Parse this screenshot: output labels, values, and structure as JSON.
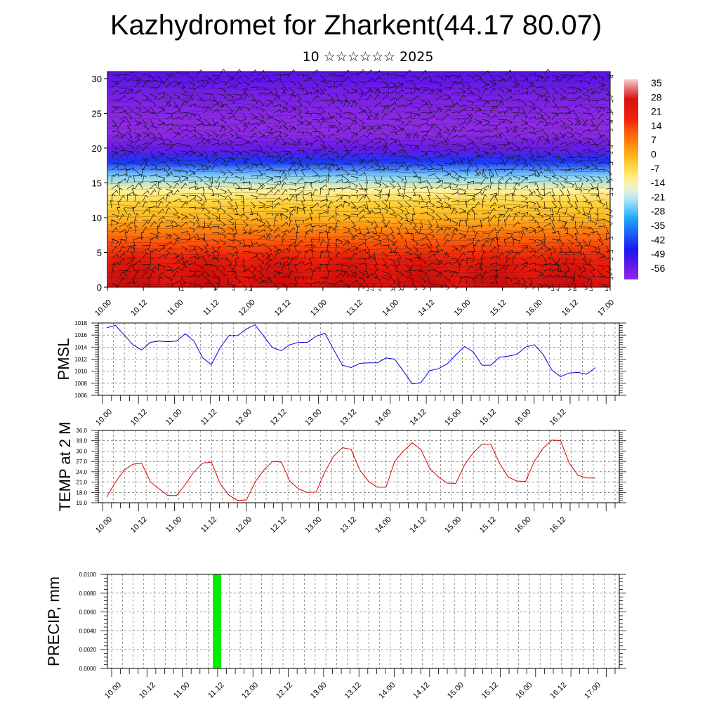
{
  "title": "Kazhydromet for Zharkent(44.17 80.07)",
  "subtitle": "10 ☆☆☆☆☆☆ 2025",
  "time_labels": [
    "10.00",
    "10.12",
    "11.00",
    "11.12",
    "12.00",
    "12.12",
    "13.00",
    "13.12",
    "14.00",
    "14.12",
    "15.00",
    "15.12",
    "16.00",
    "16.12",
    "17.00"
  ],
  "chart_data": [
    {
      "type": "heatmap",
      "name": "vertical temperature cross-section with wind barbs",
      "y_ticks": [
        "0",
        "5",
        "10",
        "15",
        "20",
        "25",
        "30"
      ],
      "ylim": [
        0,
        31
      ],
      "colorbar_labels": [
        "35",
        "28",
        "21",
        "14",
        "7",
        "0",
        "-7",
        "-14",
        "-21",
        "-28",
        "-35",
        "-42",
        "-49",
        "-56"
      ],
      "colorbar_range": [
        -60,
        38
      ],
      "levels": [
        0,
        2,
        4,
        6,
        8,
        10,
        12,
        14,
        16,
        18,
        20,
        22,
        24,
        26,
        28,
        30
      ],
      "profile_base": [
        26,
        24,
        20,
        14,
        8,
        0,
        -4,
        -12,
        -24,
        -42,
        -54,
        -60,
        -60,
        -58,
        -56,
        -52
      ],
      "diurnal_amplitude": [
        10,
        7,
        3,
        1,
        0,
        0,
        0,
        0,
        0,
        0,
        0,
        0,
        0,
        0,
        0,
        0
      ]
    },
    {
      "type": "line",
      "ylabel": "PMSL",
      "ylim": [
        1006,
        1018
      ],
      "y_ticks": [
        "1018",
        "1016",
        "1014",
        "1012",
        "1010",
        "1008",
        "1006"
      ],
      "series": [
        {
          "color": "#0000ee",
          "values": [
            1017.2,
            1017.6,
            1016.0,
            1014.4,
            1013.5,
            1014.8,
            1015.0,
            1014.9,
            1015.0,
            1016.2,
            1015.0,
            1012.2,
            1011.1,
            1013.9,
            1015.9,
            1015.9,
            1017.0,
            1017.7,
            1015.8,
            1013.9,
            1013.4,
            1014.4,
            1014.8,
            1014.8,
            1015.8,
            1016.3,
            1013.6,
            1011.0,
            1010.6,
            1011.3,
            1011.4,
            1011.4,
            1012.2,
            1012.0,
            1010.0,
            1007.9,
            1008.1,
            1010.1,
            1010.4,
            1011.2,
            1012.7,
            1014.1,
            1013.2,
            1011.0,
            1011.0,
            1012.3,
            1012.5,
            1012.8,
            1014.0,
            1014.4,
            1012.8,
            1010.2,
            1009.1,
            1009.7,
            1009.8,
            1009.5,
            1010.6
          ]
        }
      ]
    },
    {
      "type": "line",
      "ylabel": "TEMP at 2 M",
      "ylim": [
        15,
        36
      ],
      "y_ticks": [
        "36.0",
        "33.0",
        "30.0",
        "27.0",
        "24.0",
        "21.0",
        "18.0",
        "15.0"
      ],
      "series": [
        {
          "color": "#dd0000",
          "values": [
            16.7,
            21.0,
            24.5,
            26.2,
            26.5,
            21.1,
            19.0,
            17.1,
            17.1,
            20.3,
            24.0,
            26.5,
            26.8,
            20.5,
            17.2,
            15.7,
            15.8,
            21.0,
            24.5,
            27.0,
            26.8,
            21.2,
            19.0,
            18.0,
            18.1,
            24.0,
            28.5,
            31.0,
            30.5,
            24.5,
            21.2,
            19.5,
            19.5,
            27.0,
            30.0,
            32.4,
            30.5,
            25.0,
            22.5,
            20.7,
            20.6,
            26.0,
            29.5,
            32.0,
            32.0,
            26.5,
            22.5,
            21.3,
            21.2,
            27.0,
            30.8,
            33.2,
            33.0,
            26.5,
            23.0,
            22.2,
            22.2
          ]
        }
      ]
    },
    {
      "type": "bar",
      "ylabel": "PRECIP, mm",
      "ylim": [
        0,
        0.01
      ],
      "y_ticks": [
        "0.0100",
        "0.0080",
        "0.0060",
        "0.0040",
        "0.0020",
        "0.0000"
      ],
      "bar_color": "#00ee00",
      "series": [
        {
          "values": [
            0,
            0,
            0,
            0,
            0,
            0,
            0,
            0,
            0,
            0,
            0,
            0,
            0.01,
            0,
            0,
            0,
            0,
            0,
            0,
            0,
            0,
            0,
            0,
            0,
            0,
            0,
            0,
            0,
            0,
            0,
            0,
            0,
            0,
            0,
            0,
            0,
            0,
            0,
            0,
            0,
            0,
            0,
            0,
            0,
            0,
            0,
            0,
            0,
            0,
            0,
            0,
            0,
            0,
            0,
            0,
            0
          ]
        }
      ]
    }
  ]
}
